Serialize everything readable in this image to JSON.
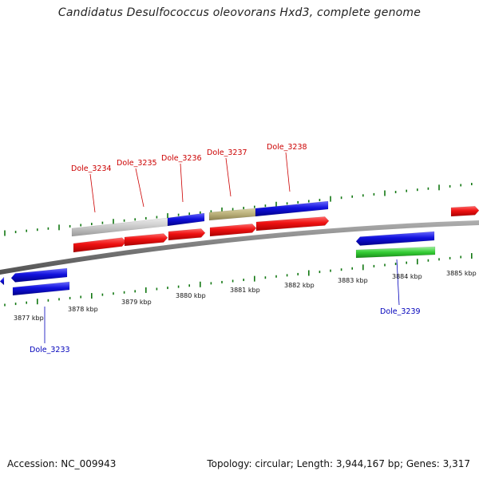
{
  "title": "Candidatus Desulfococcus oleovorans Hxd3, complete genome",
  "footer": {
    "accession_label": "Accession:",
    "accession": "NC_009943",
    "topology_text": "Topology: circular; Length: 3,944,167 bp; Genes: 3,317"
  },
  "colors": {
    "forward_label": "#cc0000",
    "reverse_label": "#0000bb",
    "tick_green": "#117711",
    "backbone": "#808080",
    "red_gene": "#ee1111",
    "blue_gene": "#1111dd",
    "gray_gene": "#c8c8c8",
    "olive_gene": "#b8ae78",
    "green_gene": "#33cc33"
  },
  "axis": {
    "unit": "kbp",
    "tick_labels": [
      "3877 kbp",
      "3878 kbp",
      "3879 kbp",
      "3880 kbp",
      "3881 kbp",
      "3882 kbp",
      "3883 kbp",
      "3884 kbp",
      "3885 kbp"
    ]
  },
  "genes": [
    {
      "name": "Dole_3233",
      "strand": "reverse",
      "labeled": true
    },
    {
      "name": "Dole_3234",
      "strand": "forward",
      "labeled": true
    },
    {
      "name": "Dole_3235",
      "strand": "forward",
      "labeled": true
    },
    {
      "name": "Dole_3236",
      "strand": "forward",
      "labeled": true
    },
    {
      "name": "Dole_3237",
      "strand": "forward",
      "labeled": true
    },
    {
      "name": "Dole_3238",
      "strand": "forward",
      "labeled": true
    },
    {
      "name": "Dole_3239",
      "strand": "reverse",
      "labeled": true
    }
  ]
}
